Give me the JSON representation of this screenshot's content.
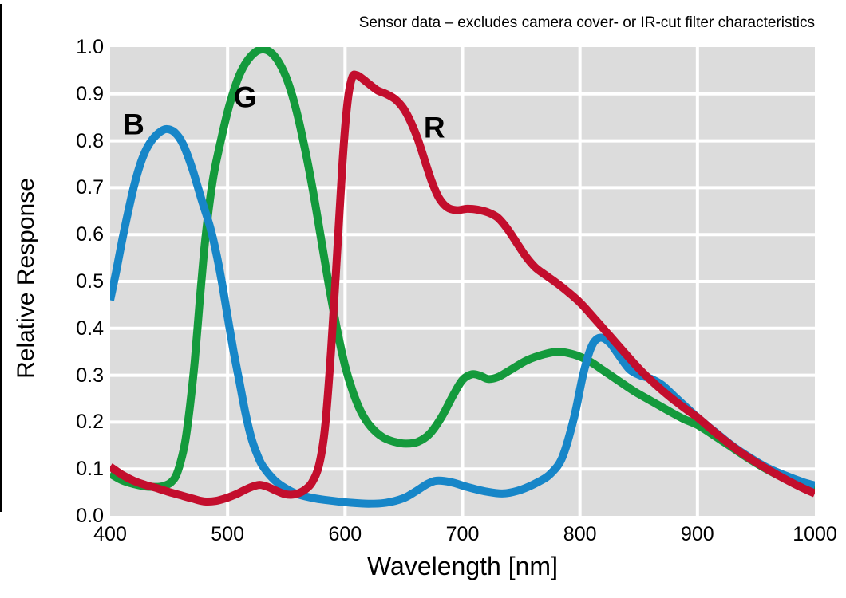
{
  "chart_data": {
    "type": "line",
    "title": "Sensor data – excludes camera cover- or IR-cut filter characteristics",
    "xlabel": "Wavelength [nm]",
    "ylabel": "Relative Response",
    "xlim": [
      400,
      1000
    ],
    "ylim": [
      0,
      1
    ],
    "grid": true,
    "plot_bg": "#dcdcdc",
    "grid_color": "#ffffff",
    "x_gridlines": [
      500,
      600,
      700,
      800,
      900
    ],
    "y_gridlines": [
      0.1,
      0.2,
      0.3,
      0.4,
      0.5,
      0.6,
      0.7,
      0.8,
      0.9
    ],
    "x_ticks": [
      {
        "label": "400",
        "value": 400
      },
      {
        "label": "500",
        "value": 500
      },
      {
        "label": "600",
        "value": 600
      },
      {
        "label": "700",
        "value": 700
      },
      {
        "label": "800",
        "value": 800
      },
      {
        "label": "900",
        "value": 900
      },
      {
        "label": "1000",
        "value": 1000
      }
    ],
    "y_ticks": [
      {
        "label": "0.0",
        "value": 0.0
      },
      {
        "label": "0.1",
        "value": 0.1
      },
      {
        "label": "0.2",
        "value": 0.2
      },
      {
        "label": "0.3",
        "value": 0.3
      },
      {
        "label": "0.4",
        "value": 0.4
      },
      {
        "label": "0.5",
        "value": 0.5
      },
      {
        "label": "0.6",
        "value": 0.6
      },
      {
        "label": "0.7",
        "value": 0.7
      },
      {
        "label": "0.8",
        "value": 0.8
      },
      {
        "label": "0.9",
        "value": 0.9
      },
      {
        "label": "1.0",
        "value": 1.0
      }
    ],
    "curve_labels": [
      {
        "text": "B",
        "nm": 420,
        "value": 0.835
      },
      {
        "text": "G",
        "nm": 515,
        "value": 0.893
      },
      {
        "text": "R",
        "nm": 676,
        "value": 0.828
      }
    ],
    "series": [
      {
        "name": "G",
        "color": "#149a3c",
        "points": [
          [
            400,
            0.09
          ],
          [
            410,
            0.076
          ],
          [
            420,
            0.068
          ],
          [
            430,
            0.063
          ],
          [
            436,
            0.062
          ],
          [
            442,
            0.062
          ],
          [
            448,
            0.066
          ],
          [
            452,
            0.072
          ],
          [
            456,
            0.085
          ],
          [
            460,
            0.115
          ],
          [
            464,
            0.16
          ],
          [
            468,
            0.235
          ],
          [
            472,
            0.33
          ],
          [
            476,
            0.45
          ],
          [
            480,
            0.565
          ],
          [
            484,
            0.655
          ],
          [
            488,
            0.725
          ],
          [
            492,
            0.775
          ],
          [
            496,
            0.82
          ],
          [
            500,
            0.862
          ],
          [
            505,
            0.905
          ],
          [
            510,
            0.94
          ],
          [
            516,
            0.968
          ],
          [
            523,
            0.988
          ],
          [
            530,
            0.995
          ],
          [
            537,
            0.988
          ],
          [
            544,
            0.966
          ],
          [
            551,
            0.928
          ],
          [
            558,
            0.87
          ],
          [
            565,
            0.793
          ],
          [
            572,
            0.703
          ],
          [
            579,
            0.6
          ],
          [
            586,
            0.495
          ],
          [
            593,
            0.4
          ],
          [
            600,
            0.32
          ],
          [
            607,
            0.262
          ],
          [
            614,
            0.22
          ],
          [
            622,
            0.19
          ],
          [
            632,
            0.168
          ],
          [
            642,
            0.158
          ],
          [
            652,
            0.154
          ],
          [
            662,
            0.158
          ],
          [
            672,
            0.175
          ],
          [
            682,
            0.21
          ],
          [
            692,
            0.257
          ],
          [
            700,
            0.29
          ],
          [
            708,
            0.302
          ],
          [
            715,
            0.299
          ],
          [
            722,
            0.292
          ],
          [
            730,
            0.296
          ],
          [
            740,
            0.31
          ],
          [
            755,
            0.332
          ],
          [
            770,
            0.345
          ],
          [
            782,
            0.35
          ],
          [
            795,
            0.344
          ],
          [
            808,
            0.33
          ],
          [
            820,
            0.31
          ],
          [
            833,
            0.288
          ],
          [
            846,
            0.266
          ],
          [
            860,
            0.246
          ],
          [
            874,
            0.226
          ],
          [
            888,
            0.207
          ],
          [
            900,
            0.194
          ],
          [
            915,
            0.17
          ],
          [
            930,
            0.145
          ],
          [
            945,
            0.12
          ],
          [
            960,
            0.098
          ],
          [
            975,
            0.079
          ],
          [
            990,
            0.065
          ],
          [
            1000,
            0.057
          ]
        ]
      },
      {
        "name": "B",
        "color": "#1786c8",
        "points": [
          [
            400,
            0.46
          ],
          [
            405,
            0.52
          ],
          [
            410,
            0.585
          ],
          [
            415,
            0.645
          ],
          [
            420,
            0.7
          ],
          [
            425,
            0.745
          ],
          [
            430,
            0.778
          ],
          [
            436,
            0.803
          ],
          [
            442,
            0.818
          ],
          [
            448,
            0.825
          ],
          [
            455,
            0.818
          ],
          [
            462,
            0.793
          ],
          [
            470,
            0.74
          ],
          [
            478,
            0.673
          ],
          [
            485,
            0.617
          ],
          [
            490,
            0.565
          ],
          [
            495,
            0.5
          ],
          [
            500,
            0.425
          ],
          [
            505,
            0.352
          ],
          [
            510,
            0.287
          ],
          [
            515,
            0.222
          ],
          [
            520,
            0.168
          ],
          [
            525,
            0.132
          ],
          [
            530,
            0.106
          ],
          [
            540,
            0.076
          ],
          [
            550,
            0.058
          ],
          [
            560,
            0.046
          ],
          [
            575,
            0.037
          ],
          [
            590,
            0.032
          ],
          [
            605,
            0.028
          ],
          [
            620,
            0.026
          ],
          [
            635,
            0.028
          ],
          [
            650,
            0.038
          ],
          [
            660,
            0.052
          ],
          [
            670,
            0.068
          ],
          [
            678,
            0.075
          ],
          [
            690,
            0.072
          ],
          [
            705,
            0.061
          ],
          [
            720,
            0.052
          ],
          [
            735,
            0.048
          ],
          [
            750,
            0.056
          ],
          [
            765,
            0.073
          ],
          [
            775,
            0.09
          ],
          [
            785,
            0.125
          ],
          [
            795,
            0.21
          ],
          [
            803,
            0.305
          ],
          [
            810,
            0.362
          ],
          [
            817,
            0.38
          ],
          [
            825,
            0.37
          ],
          [
            833,
            0.343
          ],
          [
            842,
            0.313
          ],
          [
            851,
            0.3
          ],
          [
            860,
            0.293
          ],
          [
            870,
            0.279
          ],
          [
            880,
            0.256
          ],
          [
            890,
            0.233
          ],
          [
            900,
            0.21
          ],
          [
            915,
            0.179
          ],
          [
            930,
            0.149
          ],
          [
            945,
            0.124
          ],
          [
            960,
            0.102
          ],
          [
            975,
            0.086
          ],
          [
            990,
            0.072
          ],
          [
            1000,
            0.065
          ]
        ]
      },
      {
        "name": "R",
        "color": "#c30e2d",
        "points": [
          [
            400,
            0.105
          ],
          [
            410,
            0.088
          ],
          [
            420,
            0.075
          ],
          [
            430,
            0.066
          ],
          [
            440,
            0.059
          ],
          [
            450,
            0.051
          ],
          [
            460,
            0.044
          ],
          [
            470,
            0.037
          ],
          [
            480,
            0.031
          ],
          [
            490,
            0.032
          ],
          [
            500,
            0.039
          ],
          [
            508,
            0.047
          ],
          [
            516,
            0.057
          ],
          [
            523,
            0.064
          ],
          [
            528,
            0.066
          ],
          [
            534,
            0.062
          ],
          [
            541,
            0.054
          ],
          [
            548,
            0.047
          ],
          [
            554,
            0.045
          ],
          [
            560,
            0.048
          ],
          [
            566,
            0.056
          ],
          [
            572,
            0.072
          ],
          [
            578,
            0.11
          ],
          [
            583,
            0.19
          ],
          [
            588,
            0.35
          ],
          [
            593,
            0.55
          ],
          [
            598,
            0.76
          ],
          [
            602,
            0.88
          ],
          [
            606,
            0.935
          ],
          [
            610,
            0.94
          ],
          [
            615,
            0.932
          ],
          [
            621,
            0.92
          ],
          [
            628,
            0.907
          ],
          [
            635,
            0.9
          ],
          [
            643,
            0.888
          ],
          [
            650,
            0.868
          ],
          [
            656,
            0.84
          ],
          [
            662,
            0.803
          ],
          [
            668,
            0.757
          ],
          [
            674,
            0.712
          ],
          [
            680,
            0.678
          ],
          [
            687,
            0.658
          ],
          [
            695,
            0.652
          ],
          [
            704,
            0.655
          ],
          [
            713,
            0.653
          ],
          [
            722,
            0.647
          ],
          [
            730,
            0.636
          ],
          [
            738,
            0.613
          ],
          [
            746,
            0.583
          ],
          [
            754,
            0.553
          ],
          [
            762,
            0.53
          ],
          [
            771,
            0.513
          ],
          [
            780,
            0.497
          ],
          [
            790,
            0.477
          ],
          [
            800,
            0.455
          ],
          [
            812,
            0.422
          ],
          [
            825,
            0.385
          ],
          [
            838,
            0.348
          ],
          [
            851,
            0.312
          ],
          [
            864,
            0.281
          ],
          [
            877,
            0.253
          ],
          [
            890,
            0.228
          ],
          [
            900,
            0.21
          ],
          [
            915,
            0.178
          ],
          [
            930,
            0.148
          ],
          [
            945,
            0.122
          ],
          [
            960,
            0.099
          ],
          [
            975,
            0.078
          ],
          [
            990,
            0.059
          ],
          [
            1000,
            0.048
          ]
        ]
      }
    ]
  }
}
